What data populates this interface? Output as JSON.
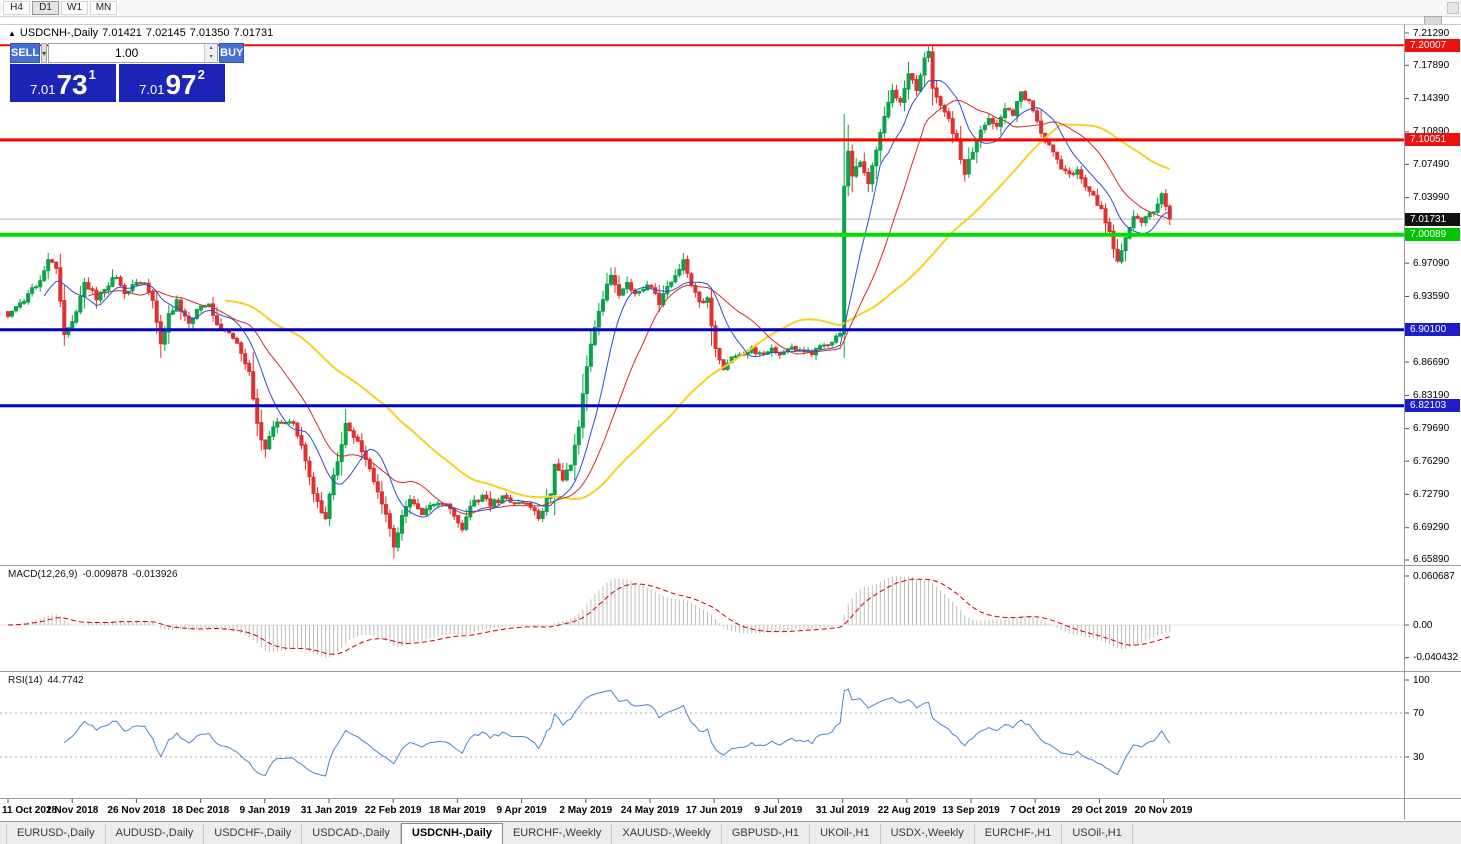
{
  "toolbar": {
    "timeframes": [
      "H4",
      "D1",
      "W1",
      "MN"
    ],
    "active": "D1"
  },
  "chart": {
    "collapse_icon": "▲",
    "symbol": "USDCNH-,Daily",
    "open": "7.01421",
    "high": "7.02145",
    "low": "7.01350",
    "close": "7.01731"
  },
  "trade_panel": {
    "sell_label": "SELL",
    "buy_label": "BUY",
    "volume": "1.00",
    "dropdown_icon": "▾",
    "spinner_up": "▴",
    "spinner_down": "▾",
    "sell_price": {
      "prefix": "7.01",
      "big": "73",
      "sup": "1"
    },
    "buy_price": {
      "prefix": "7.01",
      "big": "97",
      "sup": "2"
    }
  },
  "price_axis": {
    "ticks": [
      {
        "label": "7.21290",
        "value": 7.2129
      },
      {
        "label": "7.17890",
        "value": 7.1789
      },
      {
        "label": "7.14390",
        "value": 7.1439
      },
      {
        "label": "7.10890",
        "value": 7.1089
      },
      {
        "label": "7.07490",
        "value": 7.0749
      },
      {
        "label": "7.03990",
        "value": 7.0399
      },
      {
        "label": "6.97090",
        "value": 6.9709
      },
      {
        "label": "6.93590",
        "value": 6.9359
      },
      {
        "label": "6.86690",
        "value": 6.8669
      },
      {
        "label": "6.83190",
        "value": 6.8319
      },
      {
        "label": "6.79690",
        "value": 6.7969
      },
      {
        "label": "6.76290",
        "value": 6.7629
      },
      {
        "label": "6.72790",
        "value": 6.7279
      },
      {
        "label": "6.69290",
        "value": 6.6929
      },
      {
        "label": "6.65890",
        "value": 6.6589
      }
    ],
    "badges": [
      {
        "label": "7.20007",
        "value": 7.20007,
        "bg": "#ee1111"
      },
      {
        "label": "7.10051",
        "value": 7.10051,
        "bg": "#ee1111"
      },
      {
        "label": "7.01731",
        "value": 7.01731,
        "bg": "#111111"
      },
      {
        "label": "7.00089",
        "value": 7.00089,
        "bg": "#00c400"
      },
      {
        "label": "6.90100",
        "value": 6.901,
        "bg": "#1d1dc9"
      },
      {
        "label": "6.82103",
        "value": 6.82103,
        "bg": "#1d1dc9"
      }
    ]
  },
  "indicators": {
    "macd": {
      "name": "MACD(12,26,9)",
      "main_value": "-0.009878",
      "signal_value": "-0.013926",
      "axis": [
        {
          "label": "0.060687",
          "value": 0.060687
        },
        {
          "label": "0.00",
          "value": 0
        },
        {
          "label": "-0.040432",
          "value": -0.040432
        }
      ]
    },
    "rsi": {
      "name": "RSI(14)",
      "value": "44.7742",
      "levels": [
        70,
        30
      ],
      "axis": [
        {
          "label": "100",
          "value": 100
        },
        {
          "label": "70",
          "value": 70
        },
        {
          "label": "30",
          "value": 30
        }
      ]
    }
  },
  "time_axis": {
    "labels": [
      "11 Oct 2018",
      "2 Nov 2018",
      "26 Nov 2018",
      "18 Dec 2018",
      "9 Jan 2019",
      "31 Jan 2019",
      "22 Feb 2019",
      "18 Mar 2019",
      "9 Apr 2019",
      "2 May 2019",
      "24 May 2019",
      "17 Jun 2019",
      "9 Jul 2019",
      "31 Jul 2019",
      "22 Aug 2019",
      "13 Sep 2019",
      "7 Oct 2019",
      "29 Oct 2019",
      "20 Nov 2019"
    ]
  },
  "tabs": {
    "active_index": 4,
    "items": [
      "EURUSD-,Daily",
      "AUDUSD-,Daily",
      "USDCHF-,Daily",
      "USDCAD-,Daily",
      "USDCNH-,Daily",
      "EURCHF-,Weekly",
      "XAUUSD-,Weekly",
      "GBPUSD-,H1",
      "UKOil-,H1",
      "USDX-,Weekly",
      "EURCHF-,H1",
      "USOil-,H1"
    ]
  },
  "chart_data": {
    "type": "candlestick",
    "symbol": "USDCNH",
    "timeframe": "Daily",
    "visible_range": {
      "start": "11 Oct 2018",
      "end": "20 Nov 2019"
    },
    "price_range": [
      6.6589,
      7.2129
    ],
    "bars": 290,
    "last_close": 7.0173,
    "lowest": {
      "bar": 96,
      "price": 6.6605
    },
    "highest": {
      "bar": 229,
      "price": 7.1985
    },
    "ohlc_current": {
      "open": 7.01421,
      "high": 7.02145,
      "low": 7.0135,
      "close": 7.01731
    },
    "close_anchors": [
      [
        0,
        6.915
      ],
      [
        4,
        6.93
      ],
      [
        8,
        6.955
      ],
      [
        10,
        6.975
      ],
      [
        12,
        6.965
      ],
      [
        14,
        6.895
      ],
      [
        17,
        6.92
      ],
      [
        19,
        6.952
      ],
      [
        22,
        6.935
      ],
      [
        24,
        6.945
      ],
      [
        27,
        6.958
      ],
      [
        29,
        6.94
      ],
      [
        32,
        6.95
      ],
      [
        34,
        6.952
      ],
      [
        36,
        6.93
      ],
      [
        38,
        6.885
      ],
      [
        40,
        6.915
      ],
      [
        42,
        6.93
      ],
      [
        45,
        6.905
      ],
      [
        47,
        6.925
      ],
      [
        50,
        6.928
      ],
      [
        52,
        6.905
      ],
      [
        55,
        6.9
      ],
      [
        57,
        6.885
      ],
      [
        60,
        6.855
      ],
      [
        62,
        6.8
      ],
      [
        64,
        6.775
      ],
      [
        66,
        6.8
      ],
      [
        69,
        6.805
      ],
      [
        71,
        6.8
      ],
      [
        74,
        6.765
      ],
      [
        76,
        6.73
      ],
      [
        79,
        6.7
      ],
      [
        80,
        6.73
      ],
      [
        82,
        6.765
      ],
      [
        84,
        6.8
      ],
      [
        86,
        6.79
      ],
      [
        89,
        6.765
      ],
      [
        91,
        6.74
      ],
      [
        94,
        6.71
      ],
      [
        96,
        6.675
      ],
      [
        98,
        6.705
      ],
      [
        100,
        6.72
      ],
      [
        103,
        6.708
      ],
      [
        105,
        6.714
      ],
      [
        108,
        6.72
      ],
      [
        110,
        6.712
      ],
      [
        113,
        6.692
      ],
      [
        115,
        6.718
      ],
      [
        118,
        6.725
      ],
      [
        120,
        6.718
      ],
      [
        123,
        6.724
      ],
      [
        125,
        6.718
      ],
      [
        128,
        6.722
      ],
      [
        130,
        6.716
      ],
      [
        132,
        6.703
      ],
      [
        135,
        6.73
      ],
      [
        136,
        6.758
      ],
      [
        138,
        6.744
      ],
      [
        140,
        6.76
      ],
      [
        142,
        6.8
      ],
      [
        144,
        6.865
      ],
      [
        146,
        6.905
      ],
      [
        148,
        6.935
      ],
      [
        150,
        6.957
      ],
      [
        152,
        6.937
      ],
      [
        154,
        6.948
      ],
      [
        156,
        6.937
      ],
      [
        158,
        6.943
      ],
      [
        160,
        6.947
      ],
      [
        162,
        6.928
      ],
      [
        164,
        6.948
      ],
      [
        166,
        6.958
      ],
      [
        168,
        6.973
      ],
      [
        170,
        6.95
      ],
      [
        172,
        6.932
      ],
      [
        174,
        6.932
      ],
      [
        176,
        6.88
      ],
      [
        178,
        6.858
      ],
      [
        180,
        6.87
      ],
      [
        182,
        6.876
      ],
      [
        185,
        6.88
      ],
      [
        187,
        6.874
      ],
      [
        190,
        6.88
      ],
      [
        192,
        6.876
      ],
      [
        195,
        6.882
      ],
      [
        197,
        6.878
      ],
      [
        200,
        6.876
      ],
      [
        202,
        6.882
      ],
      [
        204,
        6.888
      ],
      [
        207,
        6.895
      ],
      [
        208,
        7.05
      ],
      [
        209,
        7.09
      ],
      [
        210,
        7.06
      ],
      [
        212,
        7.08
      ],
      [
        214,
        7.055
      ],
      [
        216,
        7.09
      ],
      [
        218,
        7.125
      ],
      [
        220,
        7.155
      ],
      [
        222,
        7.14
      ],
      [
        224,
        7.17
      ],
      [
        226,
        7.155
      ],
      [
        228,
        7.185
      ],
      [
        229,
        7.193
      ],
      [
        230,
        7.155
      ],
      [
        232,
        7.135
      ],
      [
        234,
        7.12
      ],
      [
        236,
        7.1
      ],
      [
        238,
        7.065
      ],
      [
        240,
        7.09
      ],
      [
        242,
        7.11
      ],
      [
        244,
        7.125
      ],
      [
        246,
        7.115
      ],
      [
        248,
        7.135
      ],
      [
        250,
        7.128
      ],
      [
        252,
        7.15
      ],
      [
        254,
        7.14
      ],
      [
        256,
        7.12
      ],
      [
        258,
        7.1
      ],
      [
        260,
        7.088
      ],
      [
        262,
        7.07
      ],
      [
        264,
        7.062
      ],
      [
        266,
        7.072
      ],
      [
        268,
        7.052
      ],
      [
        270,
        7.04
      ],
      [
        272,
        7.028
      ],
      [
        274,
        7.005
      ],
      [
        276,
        6.972
      ],
      [
        278,
        7.0
      ],
      [
        280,
        7.022
      ],
      [
        282,
        7.012
      ],
      [
        284,
        7.022
      ],
      [
        286,
        7.032
      ],
      [
        287,
        7.042
      ],
      [
        289,
        7.0173
      ]
    ],
    "hlines": [
      {
        "price": 7.20007,
        "color": "#ff0000",
        "width": 2,
        "type": "resistance"
      },
      {
        "price": 7.10051,
        "color": "#ff0000",
        "width": 3,
        "type": "resistance"
      },
      {
        "price": 7.00089,
        "color": "#00dd00",
        "width": 4,
        "type": "support"
      },
      {
        "price": 6.901,
        "color": "#0000cc",
        "width": 3,
        "type": "support"
      },
      {
        "price": 6.82103,
        "color": "#0000cc",
        "width": 3,
        "type": "support"
      }
    ],
    "current_price_line": {
      "price": 7.01731,
      "color": "#b4b4b4"
    },
    "moving_averages": [
      {
        "period": 10,
        "color": "#2e4fc8",
        "width": 1
      },
      {
        "period": 21,
        "color": "#d02c2c",
        "width": 1
      },
      {
        "period": 55,
        "color": "#f6d122",
        "width": 2
      }
    ],
    "candle_colors": {
      "up": "#0aa34a",
      "down": "#e03030"
    },
    "macd": {
      "fast": 12,
      "slow": 26,
      "signal": 9,
      "histogram_color": "#bdbdbd",
      "signal_color": "#cc0000"
    },
    "rsi": {
      "period": 14,
      "color": "#4a86c8"
    }
  }
}
